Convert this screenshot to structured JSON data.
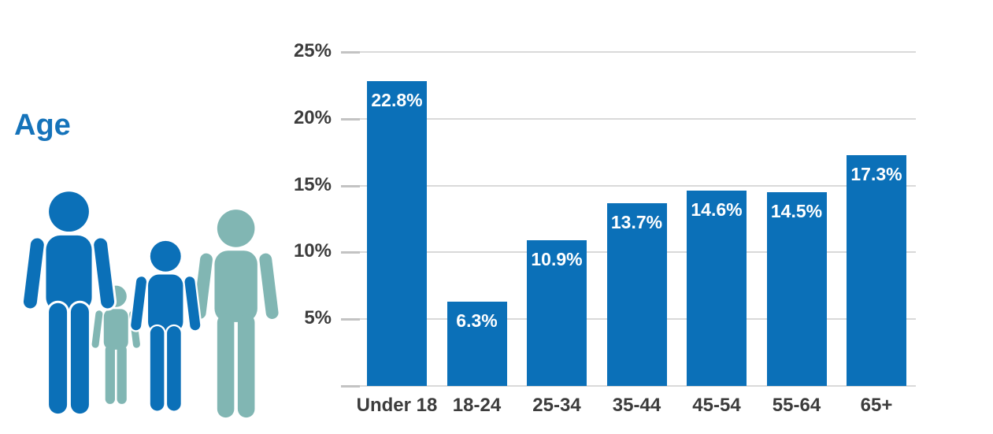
{
  "title": {
    "text": "Age",
    "color": "#1573BA"
  },
  "family_icon": {
    "name": "family-icon",
    "blue": "#0B70B8",
    "teal": "#81B6B3",
    "figures": [
      "adult-blue",
      "small-child-teal",
      "child-blue",
      "adult-teal"
    ]
  },
  "chart_data": {
    "type": "bar",
    "title": "Age",
    "categories": [
      "Under 18",
      "18-24",
      "25-34",
      "35-44",
      "45-54",
      "55-64",
      "65+"
    ],
    "values": [
      22.8,
      6.3,
      10.9,
      13.7,
      14.6,
      14.5,
      17.3
    ],
    "value_labels": [
      "22.8%",
      "6.3%",
      "10.9%",
      "13.7%",
      "14.6%",
      "14.5%",
      "17.3%"
    ],
    "xlabel": "",
    "ylabel": "",
    "ylim": [
      0,
      25
    ],
    "ytick_values": [
      5,
      10,
      15,
      20,
      25
    ],
    "ytick_labels": [
      "5%",
      "10%",
      "15%",
      "20%",
      "25%"
    ],
    "grid": true,
    "legend": "none",
    "bar_color": "#0B70B8",
    "value_label_color": "#ffffff",
    "axis_text_color": "#3C3C3C",
    "gridline_color": "#D9D9D9",
    "tick_color": "#C3C3C3"
  }
}
